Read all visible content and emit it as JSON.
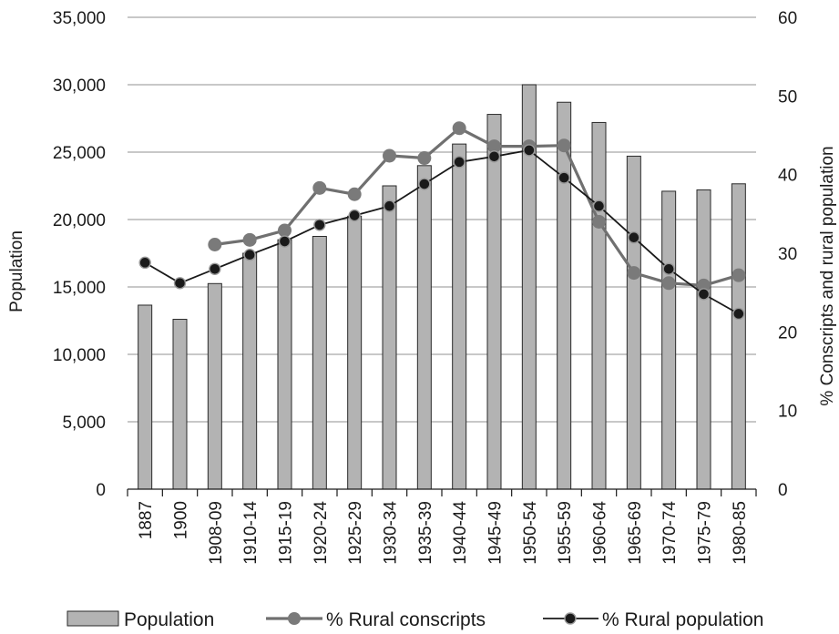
{
  "chart_data": {
    "type": "bar",
    "title": "",
    "categories": [
      "1887",
      "1900",
      "1908-09",
      "1910-14",
      "1915-19",
      "1920-24",
      "1925-29",
      "1930-34",
      "1935-39",
      "1940-44",
      "1945-49",
      "1950-54",
      "1955-59",
      "1960-64",
      "1965-69",
      "1970-74",
      "1975-79",
      "1980-85"
    ],
    "y_left": {
      "label": "Population",
      "lim": [
        0,
        35000
      ],
      "ticks": [
        0,
        5000,
        10000,
        15000,
        20000,
        25000,
        30000,
        35000
      ],
      "tick_labels": [
        "0",
        "5,000",
        "10,000",
        "15,000",
        "20,000",
        "25,000",
        "30,000",
        "35,000"
      ]
    },
    "y_right": {
      "label": "% Conscripts and rural population",
      "lim": [
        0,
        60
      ],
      "ticks": [
        0,
        10,
        20,
        30,
        40,
        50,
        60
      ],
      "tick_labels": [
        "0",
        "10",
        "20",
        "30",
        "40",
        "50",
        "60"
      ]
    },
    "grid": true,
    "legend_position": "bottom",
    "series": [
      {
        "name": "Population",
        "type": "bar",
        "axis": "left",
        "color": "#b3b3b3",
        "values": [
          13650,
          12600,
          15250,
          17500,
          18500,
          18750,
          20250,
          22500,
          24000,
          25600,
          27800,
          30000,
          28700,
          27200,
          24700,
          22100,
          22200,
          22650
        ]
      },
      {
        "name": "% Rural conscripts",
        "type": "line",
        "axis": "right",
        "color": "#707070",
        "values": [
          null,
          null,
          31.1,
          31.7,
          32.9,
          38.3,
          37.5,
          42.4,
          42.1,
          45.9,
          43.6,
          43.6,
          43.7,
          34.0,
          27.5,
          26.2,
          25.9,
          27.2
        ]
      },
      {
        "name": "% Rural population",
        "type": "line",
        "axis": "right",
        "color": "#1a1a1a",
        "values": [
          28.8,
          26.2,
          28.0,
          29.8,
          31.5,
          33.6,
          34.8,
          36.0,
          38.8,
          41.6,
          42.3,
          43.1,
          39.6,
          36.0,
          32.0,
          28.0,
          24.8,
          22.3
        ]
      }
    ]
  }
}
